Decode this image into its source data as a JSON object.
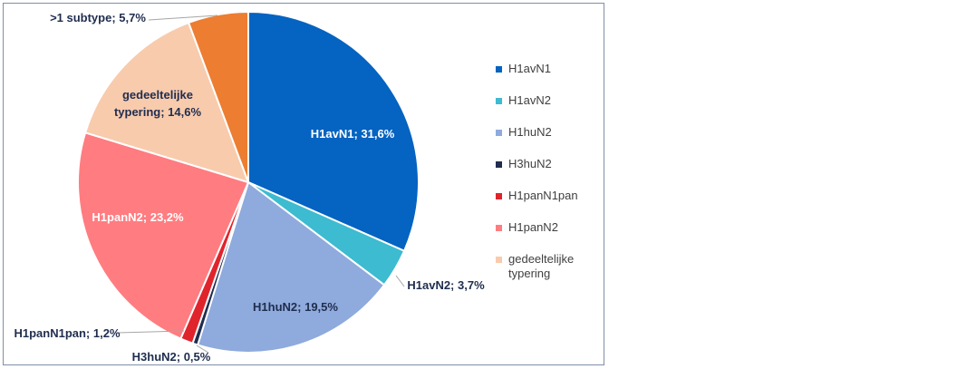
{
  "chart_data": {
    "type": "pie",
    "title": "",
    "slices": [
      {
        "category": "H1avN1",
        "value": 31.6,
        "label": "H1avN1; 31,6%",
        "color": "#0563C1"
      },
      {
        "category": "H1avN2",
        "value": 3.7,
        "label": "H1avN2; 3,7%",
        "color": "#3DBBD0"
      },
      {
        "category": "H1huN2",
        "value": 19.5,
        "label": "H1huN2; 19,5%",
        "color": "#8FAADC"
      },
      {
        "category": "H3huN2",
        "value": 0.5,
        "label": "H3huN2; 0,5%",
        "color": "#1F2D4E"
      },
      {
        "category": "H1panN1pan",
        "value": 1.2,
        "label": "H1panN1pan; 1,2%",
        "color": "#E0242C"
      },
      {
        "category": "H1panN2",
        "value": 23.2,
        "label": "H1panN2; 23,2%",
        "color": "#FF7C80"
      },
      {
        "category": "gedeeltelijke typering",
        "value": 14.6,
        "label": "gedeeltelijke typering; 14,6%",
        "color": "#F8CBAD"
      },
      {
        "category": ">1 subtype",
        "value": 5.7,
        "label": ">1 subtype; 5,7%",
        "color": "#ED7D31"
      }
    ],
    "legend": {
      "placement": "right",
      "entries": [
        "H1avN1",
        "H1avN2",
        "H1huN2",
        "H3huN2",
        "H1panN1pan",
        "H1panN2",
        "gedeeltelijke typering"
      ]
    }
  }
}
